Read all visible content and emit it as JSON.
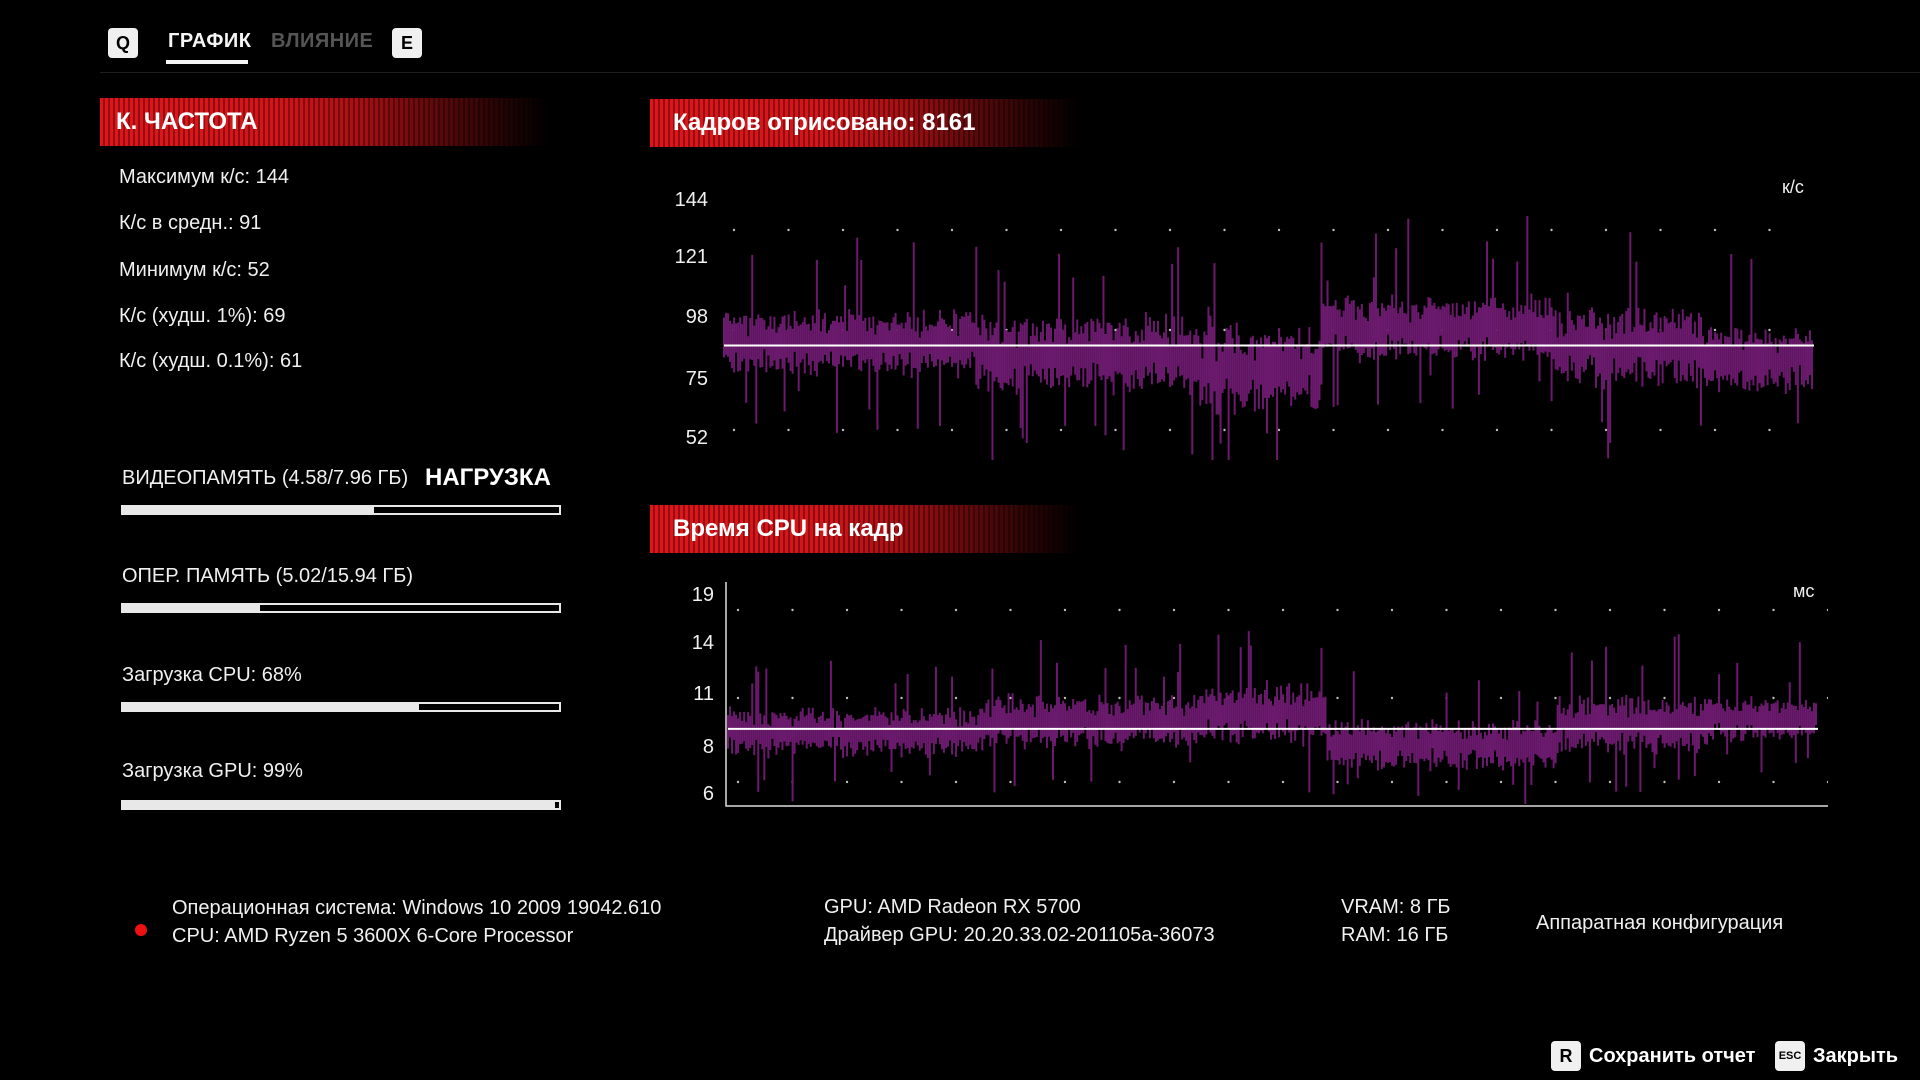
{
  "tabs": {
    "left_key": "Q",
    "items": [
      {
        "label": "ГРАФИК",
        "active": true
      },
      {
        "label": "ВЛИЯНИЕ",
        "active": false
      }
    ],
    "right_key": "E"
  },
  "framerate_panel": {
    "title": "К. ЧАСТОТА",
    "stats": [
      "Максимум к/с: 144",
      "К/с в средн.: 91",
      "Минимум к/с: 52",
      "К/с (худш. 1%): 69",
      "К/с (худш. 0.1%): 61"
    ]
  },
  "load_panel": {
    "heading": "НАГРУЗКА",
    "bars": [
      {
        "label": "ВИДЕОПАМЯТЬ (4.58/7.96 ГБ)",
        "fraction": 0.575
      },
      {
        "label": "ОПЕР. ПАМЯТЬ (5.02/15.94 ГБ)",
        "fraction": 0.315
      },
      {
        "label": "Загрузка CPU: 68%",
        "fraction": 0.68
      },
      {
        "label": "Загрузка GPU: 99%",
        "fraction": 0.99
      }
    ]
  },
  "fps_chart": {
    "title": "Кадров отрисовано: 8161",
    "unit": "к/с",
    "ticks": [
      "144",
      "121",
      "98",
      "75",
      "52"
    ]
  },
  "cpu_chart": {
    "title": "Время CPU на кадр",
    "unit": "мс",
    "ticks": [
      "19",
      "14",
      "11",
      "8",
      "6"
    ]
  },
  "chart_data": [
    {
      "type": "line",
      "title": "Кадров отрисовано: 8161",
      "ylabel": "к/с",
      "ylim": [
        52,
        144
      ],
      "average": 91,
      "segments": [
        {
          "x": [
            0,
            0.23
          ],
          "mean": 92,
          "spread": 10
        },
        {
          "x": [
            0.23,
            0.43
          ],
          "mean": 88,
          "spread": 12
        },
        {
          "x": [
            0.43,
            0.55
          ],
          "mean": 83,
          "spread": 13
        },
        {
          "x": [
            0.55,
            0.76
          ],
          "mean": 97,
          "spread": 10
        },
        {
          "x": [
            0.76,
            0.9
          ],
          "mean": 90,
          "spread": 12
        },
        {
          "x": [
            0.9,
            1.0
          ],
          "mean": 86,
          "spread": 10
        }
      ]
    },
    {
      "type": "line",
      "title": "Время CPU на кадр",
      "ylabel": "мс",
      "ylim": [
        6,
        19
      ],
      "average": 10.4,
      "segments": [
        {
          "x": [
            0,
            0.23
          ],
          "mean": 10.2,
          "spread": 1.3
        },
        {
          "x": [
            0.23,
            0.43
          ],
          "mean": 10.8,
          "spread": 1.4
        },
        {
          "x": [
            0.43,
            0.55
          ],
          "mean": 11.3,
          "spread": 1.6
        },
        {
          "x": [
            0.55,
            0.76
          ],
          "mean": 9.5,
          "spread": 1.3
        },
        {
          "x": [
            0.76,
            0.9
          ],
          "mean": 10.7,
          "spread": 1.5
        },
        {
          "x": [
            0.9,
            1.0
          ],
          "mean": 11.0,
          "spread": 1.2
        }
      ]
    }
  ],
  "footer": {
    "os": "Операционная система: Windows 10 2009 19042.610",
    "cpu": "CPU: AMD Ryzen 5 3600X 6-Core Processor",
    "gpu": "GPU: AMD Radeon RX 5700",
    "driver": "Драйвер GPU: 20.20.33.02-201105a-36073",
    "vram": "VRAM: 8 ГБ",
    "ram": "RAM: 16 ГБ",
    "hw_config": "Аппаратная конфигурация"
  },
  "actions": {
    "save_key": "R",
    "save_label": "Сохранить отчет",
    "close_key": "ESC",
    "close_label": "Закрыть"
  },
  "colors": {
    "accent_red": "#e0161b",
    "series_purple": "#6b1a6e",
    "average_line": "#ffffff"
  }
}
